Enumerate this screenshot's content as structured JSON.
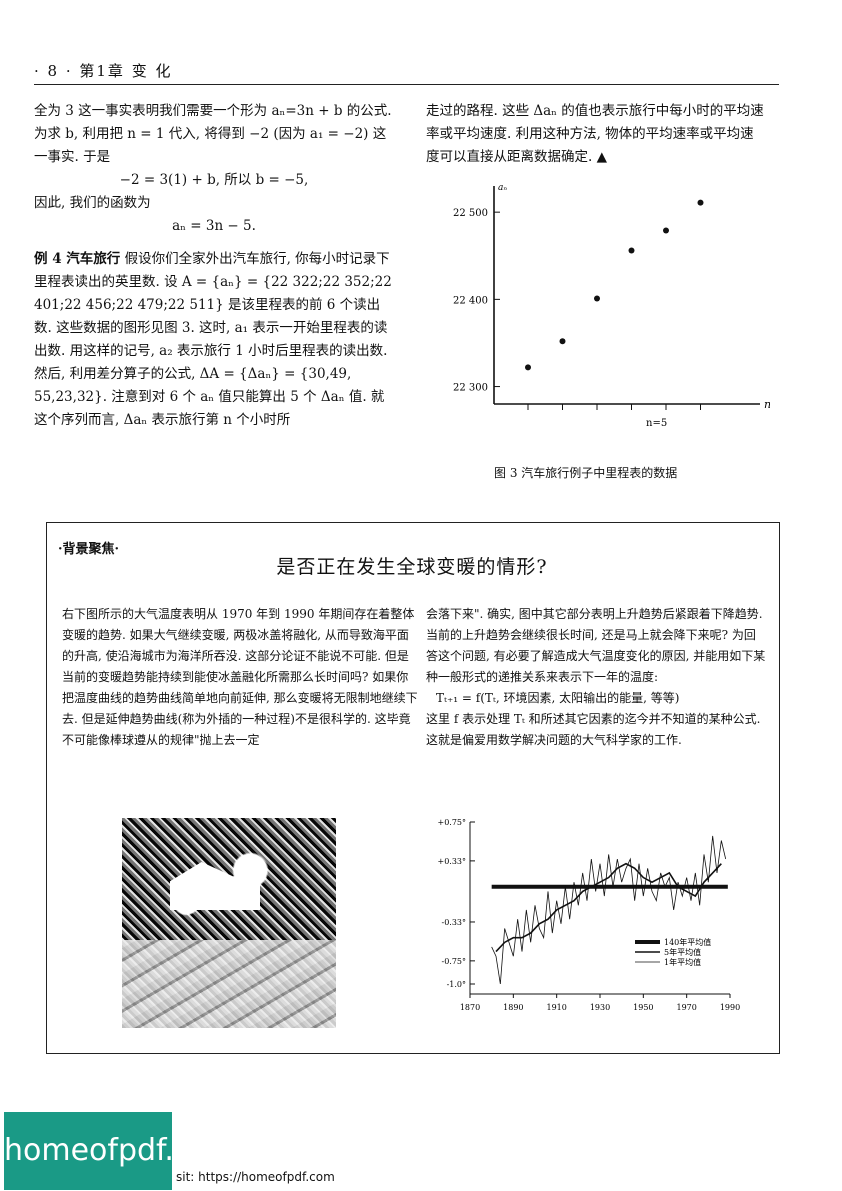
{
  "header": {
    "running_head": "· 8 ·  第1章  变  化"
  },
  "left_column": {
    "p1": "全为 3 这一事实表明我们需要一个形为 aₙ=3n + b 的公式. 为求 b, 利用把 n = 1 代入, 将得到 −2 (因为 a₁ = −2) 这一事实. 于是",
    "eq1": "−2 = 3(1) + b, 所以 b = −5,",
    "p2": "因此, 我们的函数为",
    "eq2": "aₙ = 3n − 5.",
    "example_label": "例 4   汽车旅行",
    "p3": "假设你们全家外出汽车旅行, 你每小时记录下里程表读出的英里数. 设 A = {aₙ} = {22 322;22 352;22 401;22 456;22 479;22 511} 是该里程表的前 6 个读出数. 这些数据的图形见图 3. 这时, a₁ 表示一开始里程表的读出数. 用这样的记号, a₂ 表示旅行 1 小时后里程表的读出数. 然后, 利用差分算子的公式, ΔA = {Δaₙ} = {30,49, 55,23,32}. 注意到对 6 个 aₙ 值只能算出 5 个 Δaₙ 值. 就这个序列而言, Δaₙ 表示旅行第 n 个小时所"
  },
  "right_column": {
    "p1": "走过的路程. 这些 Δaₙ 的值也表示旅行中每小时的平均速率或平均速度. 利用这种方法, 物体的平均速率或平均速度可以直接从距离数据确定. ▲"
  },
  "figure3": {
    "caption": "图 3   汽车旅行例子中里程表的数据"
  },
  "box": {
    "tag": "·背景聚焦·",
    "title": "是否正在发生全球变暖的情形?",
    "left_text": "右下图所示的大气温度表明从 1970 年到 1990 年期间存在着整体变暖的趋势. 如果大气继续变暖, 两极冰盖将融化, 从而导致海平面的升高, 使沿海城市为海洋所吞没. 这部分论证不能说不可能. 但是当前的变暖趋势能持续到能使冰盖融化所需那么长时间吗? 如果你把温度曲线的趋势曲线简单地向前延伸, 那么变暖将无限制地继续下去. 但是延伸趋势曲线(称为外插的一种过程)不是很科学的. 这毕竟不可能像棒球遵从的规律\"抛上去一定",
    "right_text1": "会落下来\". 确实, 图中其它部分表明上升趋势后紧跟着下降趋势. 当前的上升趋势会继续很长时间, 还是马上就会降下来呢? 为回答这个问题, 有必要了解造成大气温度变化的原因, 并能用如下某种一般形式的递推关系来表示下一年的温度:",
    "formula": "Tₜ₊₁ = f(Tₜ, 环境因素, 太阳输出的能量, 等等)",
    "right_text2": "这里 f 表示处理 Tₜ 和所述其它因素的迄今并不知道的某种公式. 这就是偏爱用数学解决问题的大气科学家的工作."
  },
  "footer": {
    "logo": "homeofpdf.com",
    "url": "sit: https://homeofpdf.com"
  },
  "chart_data": [
    {
      "type": "scatter",
      "title": "",
      "xlabel": "n",
      "ylabel": "aₙ",
      "x": [
        1,
        2,
        3,
        4,
        5,
        6
      ],
      "y": [
        22322,
        22352,
        22401,
        22456,
        22479,
        22511
      ],
      "ylim": [
        22280,
        22530
      ],
      "yticks": [
        22300,
        22400,
        22500
      ],
      "ytick_labels": [
        "22 300",
        "22 400",
        "22 500"
      ],
      "annotation": "n=5"
    },
    {
      "type": "line",
      "title": "",
      "xlabel": "",
      "ylabel": "",
      "xlim": [
        1870,
        1990
      ],
      "xticks": [
        1870,
        1890,
        1910,
        1930,
        1950,
        1970,
        1990
      ],
      "ylim": [
        -1.0,
        0.75
      ],
      "yticks": [
        0.75,
        0.33,
        -0.33,
        -0.75,
        -1.0
      ],
      "ytick_labels": [
        "+0.75°",
        "+0.33°",
        "-0.33°",
        "-0.75°",
        "-1.0°"
      ],
      "grid": false,
      "legend_position": "bottom-right",
      "series": [
        {
          "name": "140年平均值",
          "style": "thick",
          "x": [
            1880,
            1989
          ],
          "values": [
            0.05,
            0.05
          ]
        },
        {
          "name": "5年平均值",
          "style": "medium",
          "x": [
            1882,
            1886,
            1890,
            1894,
            1898,
            1902,
            1906,
            1910,
            1914,
            1918,
            1922,
            1926,
            1930,
            1934,
            1938,
            1942,
            1946,
            1950,
            1954,
            1958,
            1962,
            1966,
            1970,
            1974,
            1978,
            1982,
            1986
          ],
          "values": [
            -0.65,
            -0.55,
            -0.5,
            -0.5,
            -0.45,
            -0.35,
            -0.3,
            -0.2,
            -0.15,
            -0.1,
            0.0,
            0.05,
            0.1,
            0.15,
            0.25,
            0.3,
            0.25,
            0.15,
            0.1,
            0.15,
            0.2,
            0.05,
            0.0,
            -0.05,
            0.1,
            0.2,
            0.3
          ]
        },
        {
          "name": "1年平均值",
          "style": "thin",
          "x": [
            1880,
            1882,
            1884,
            1886,
            1888,
            1890,
            1892,
            1894,
            1896,
            1898,
            1900,
            1902,
            1904,
            1906,
            1908,
            1910,
            1912,
            1914,
            1916,
            1918,
            1920,
            1922,
            1924,
            1926,
            1928,
            1930,
            1932,
            1934,
            1936,
            1938,
            1940,
            1942,
            1944,
            1946,
            1948,
            1950,
            1952,
            1954,
            1956,
            1958,
            1960,
            1962,
            1964,
            1966,
            1968,
            1970,
            1972,
            1974,
            1976,
            1978,
            1980,
            1982,
            1984,
            1986,
            1988
          ],
          "values": [
            -0.6,
            -0.7,
            -1.0,
            -0.4,
            -0.55,
            -0.7,
            -0.3,
            -0.65,
            -0.2,
            -0.55,
            -0.15,
            -0.4,
            -0.5,
            0.0,
            -0.45,
            -0.1,
            -0.35,
            0.05,
            -0.3,
            0.1,
            -0.15,
            0.2,
            -0.1,
            0.35,
            0.0,
            0.3,
            -0.05,
            0.4,
            0.05,
            0.35,
            0.1,
            0.25,
            0.35,
            -0.1,
            0.3,
            -0.05,
            0.25,
            0.0,
            -0.1,
            0.2,
            0.05,
            0.15,
            -0.2,
            0.1,
            -0.05,
            0.15,
            -0.1,
            0.2,
            -0.15,
            0.4,
            0.1,
            0.6,
            0.2,
            0.55,
            0.35
          ]
        }
      ]
    }
  ]
}
